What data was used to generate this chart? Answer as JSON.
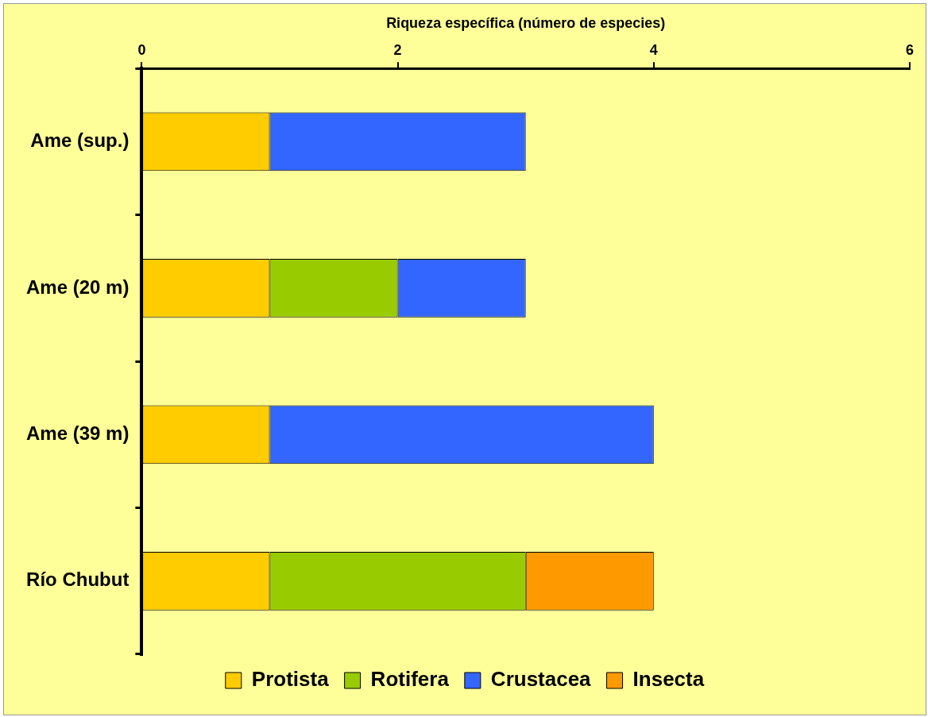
{
  "chart_data": {
    "type": "bar",
    "orientation": "horizontal",
    "stacked": true,
    "xlabel": "Riqueza específica (número de especies)",
    "categories": [
      "Ame (sup.)",
      "Ame (20 m)",
      "Ame (39 m)",
      "Río Chubut"
    ],
    "series": [
      {
        "name": "Protista",
        "color": "#ffcc00",
        "values": [
          1,
          1,
          1,
          1
        ]
      },
      {
        "name": "Rotifera",
        "color": "#99cc00",
        "values": [
          0,
          1,
          0,
          2
        ]
      },
      {
        "name": "Crustacea",
        "color": "#3366ff",
        "values": [
          2,
          1,
          3,
          0
        ]
      },
      {
        "name": "Insecta",
        "color": "#ff9900",
        "values": [
          0,
          0,
          0,
          1
        ]
      }
    ],
    "xlim": [
      0,
      6
    ],
    "xticks": [
      0,
      2,
      4,
      6
    ],
    "grid": false,
    "legend": "bottom"
  }
}
